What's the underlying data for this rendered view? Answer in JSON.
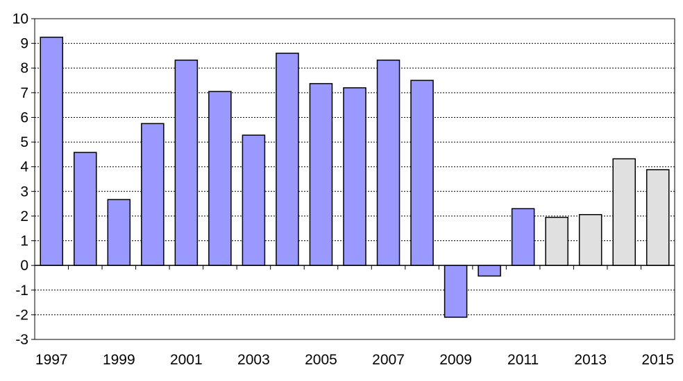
{
  "chart_data": {
    "type": "bar",
    "categories": [
      "1997",
      "1998",
      "1999",
      "2000",
      "2001",
      "2002",
      "2003",
      "2004",
      "2005",
      "2006",
      "2007",
      "2008",
      "2009",
      "2010",
      "2011",
      "2012",
      "2013",
      "2014",
      "2015"
    ],
    "values": [
      9.25,
      4.58,
      2.67,
      5.75,
      8.32,
      7.05,
      5.28,
      8.6,
      7.37,
      7.2,
      8.32,
      7.5,
      -2.1,
      -0.43,
      2.3,
      1.95,
      2.06,
      4.32,
      3.88
    ],
    "series_style": [
      "actual",
      "actual",
      "actual",
      "actual",
      "actual",
      "actual",
      "actual",
      "actual",
      "actual",
      "actual",
      "actual",
      "actual",
      "actual",
      "actual",
      "actual",
      "forecast",
      "forecast",
      "forecast",
      "forecast"
    ],
    "x_tick_labels": [
      "1997",
      "1999",
      "2001",
      "2003",
      "2005",
      "2007",
      "2009",
      "2011",
      "2013",
      "2015"
    ],
    "y_tick_labels": [
      "-3",
      "-2",
      "-1",
      "0",
      "1",
      "2",
      "3",
      "4",
      "5",
      "6",
      "7",
      "8",
      "9",
      "10"
    ],
    "ylim": [
      -3,
      10
    ],
    "grid": true,
    "grid_style": "dashed horizontal",
    "title": "",
    "xlabel": "",
    "ylabel": "",
    "colors": {
      "actual": "#9999ff",
      "forecast": "#e0e0e0",
      "bar_stroke": "#000000",
      "grid": "#000000",
      "axis": "#000000"
    }
  }
}
